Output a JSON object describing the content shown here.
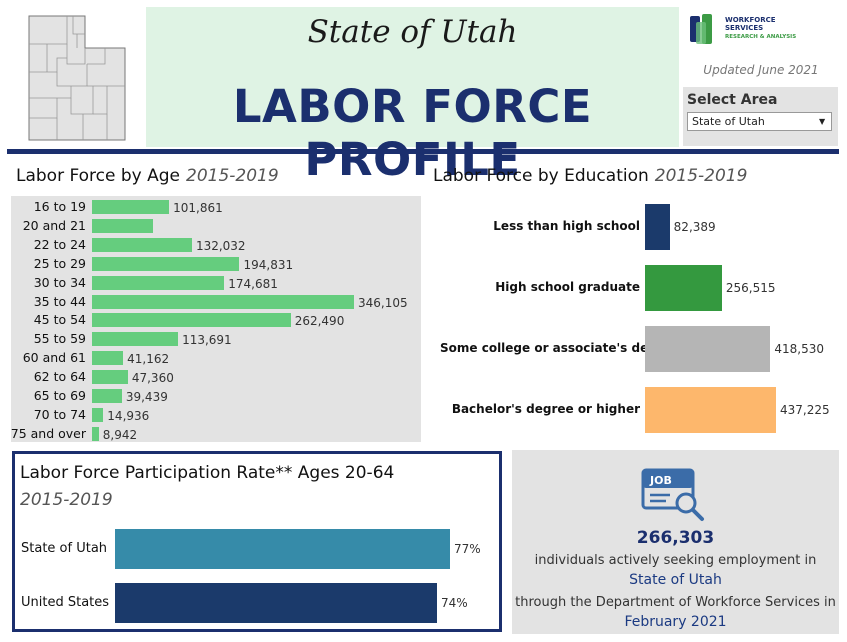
{
  "header": {
    "state_title": "State of Utah",
    "main_title": "LABOR FORCE PROFILE",
    "logo_line1": "WORKFORCE",
    "logo_line2": "SERVICES",
    "logo_line3": "RESEARCH & ANALYSIS",
    "updated": "Updated June 2021",
    "select_label": "Select Area",
    "select_value": "State of Utah"
  },
  "colors": {
    "navy": "#1b2f6e",
    "green": "#65cd7e",
    "teal": "#368ba9"
  },
  "chart_data": [
    {
      "type": "bar",
      "orientation": "horizontal",
      "title": "Labor Force by Age",
      "subtitle": "2015-2019",
      "categories": [
        "16 to 19",
        "20 and 21",
        "22 to 24",
        "25 to 29",
        "30 to 34",
        "35 to 44",
        "45 to 54",
        "55 to 59",
        "60 and 61",
        "62 to 64",
        "65 to 69",
        "70 to 74",
        "75 and over"
      ],
      "values": [
        101861,
        80000,
        132032,
        194831,
        174681,
        346105,
        262490,
        113691,
        41162,
        47360,
        39439,
        14936,
        8942
      ],
      "labels": [
        "101,861",
        "",
        "132,032",
        "194,831",
        "174,681",
        "346,105",
        "262,490",
        "113,691",
        "41,162",
        "47,360",
        "39,439",
        "14,936",
        "8,942"
      ],
      "color": "#65cd7e"
    },
    {
      "type": "bar",
      "orientation": "horizontal",
      "title": "Labor Force by Education",
      "subtitle": "2015-2019",
      "categories": [
        "Less than high school",
        "High school graduate",
        "Some college or associate's degree",
        "Bachelor's degree or higher"
      ],
      "values": [
        82389,
        256515,
        418530,
        437225
      ],
      "labels": [
        "82,389",
        "256,515",
        "418,530",
        "437,225"
      ],
      "colors": [
        "#1b3a6b",
        "#34993f",
        "#b5b5b5",
        "#fdb76c"
      ]
    },
    {
      "type": "bar",
      "orientation": "horizontal",
      "title": "Labor Force Participation Rate** Ages 20-64",
      "subtitle": "2015-2019",
      "categories": [
        "State of Utah",
        "United States"
      ],
      "values": [
        77,
        74
      ],
      "labels": [
        "77%",
        "74%"
      ],
      "colors": [
        "#368ba9",
        "#1b3a6b"
      ]
    }
  ],
  "jobs": {
    "count": "266,303",
    "line1": "individuals actively seeking employment in",
    "area": "State of Utah",
    "line2": "through the Department of Workforce Services in",
    "month": "February 2021"
  }
}
